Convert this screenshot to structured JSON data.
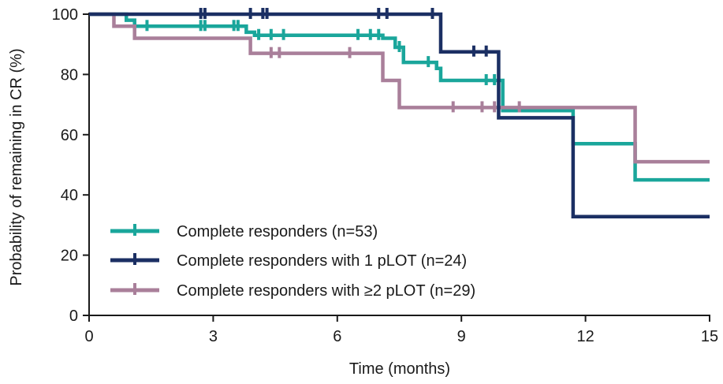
{
  "colors": {
    "axis": "#1a1a1a",
    "series_all": "#1aa69b",
    "series_1plot": "#1b2f63",
    "series_2plot": "#a97f9a"
  },
  "chart_data": {
    "type": "line",
    "subtype": "kaplan-meier-step",
    "title": "",
    "xlabel": "Time (months)",
    "ylabel": "Probability of remaining in CR (%)",
    "xlim": [
      0,
      15
    ],
    "ylim": [
      0,
      100
    ],
    "xticks": [
      0,
      3,
      6,
      9,
      12,
      15
    ],
    "yticks": [
      0,
      20,
      40,
      60,
      80,
      100
    ],
    "grid": false,
    "legend_position": "bottom-left",
    "series": [
      {
        "name": "Complete responders (n=53)",
        "color_key": "series_all",
        "steps": [
          [
            0,
            100
          ],
          [
            0.9,
            98
          ],
          [
            1.1,
            96
          ],
          [
            3.8,
            94
          ],
          [
            4.0,
            93
          ],
          [
            7.1,
            92
          ],
          [
            7.4,
            89
          ],
          [
            7.6,
            84
          ],
          [
            8.4,
            82
          ],
          [
            8.5,
            78
          ],
          [
            10.0,
            68
          ],
          [
            11.7,
            57
          ],
          [
            13.2,
            45
          ],
          [
            15,
            45
          ]
        ],
        "censored": [
          [
            1.4,
            96
          ],
          [
            2.7,
            96
          ],
          [
            2.8,
            96
          ],
          [
            3.5,
            96
          ],
          [
            3.6,
            96
          ],
          [
            4.1,
            93
          ],
          [
            4.4,
            93
          ],
          [
            4.7,
            93
          ],
          [
            6.5,
            93
          ],
          [
            6.8,
            93
          ],
          [
            7.0,
            93
          ],
          [
            7.5,
            89
          ],
          [
            8.2,
            84
          ],
          [
            9.6,
            78
          ],
          [
            9.8,
            78
          ]
        ]
      },
      {
        "name": "Complete responders with 1 pLOT (n=24)",
        "color_key": "series_1plot",
        "steps": [
          [
            0,
            100
          ],
          [
            8.5,
            87.5
          ],
          [
            9.9,
            65.6
          ],
          [
            11.7,
            32.8
          ],
          [
            15,
            32.8
          ]
        ],
        "censored": [
          [
            2.7,
            100
          ],
          [
            2.8,
            100
          ],
          [
            3.9,
            100
          ],
          [
            4.2,
            100
          ],
          [
            4.3,
            100
          ],
          [
            7.0,
            100
          ],
          [
            7.2,
            100
          ],
          [
            8.3,
            100
          ],
          [
            9.3,
            87.5
          ],
          [
            9.6,
            87.5
          ]
        ]
      },
      {
        "name": "Complete responders with ≥2 pLOT (n=29)",
        "color_key": "series_2plot",
        "steps": [
          [
            0,
            100
          ],
          [
            0.6,
            96
          ],
          [
            1.1,
            92
          ],
          [
            3.9,
            87
          ],
          [
            7.1,
            78
          ],
          [
            7.5,
            69
          ],
          [
            13.2,
            51
          ],
          [
            15,
            51
          ]
        ],
        "censored": [
          [
            4.4,
            87
          ],
          [
            4.6,
            87
          ],
          [
            6.3,
            87
          ],
          [
            8.8,
            69
          ],
          [
            9.5,
            69
          ],
          [
            9.8,
            69
          ],
          [
            10.4,
            69
          ]
        ]
      }
    ]
  }
}
